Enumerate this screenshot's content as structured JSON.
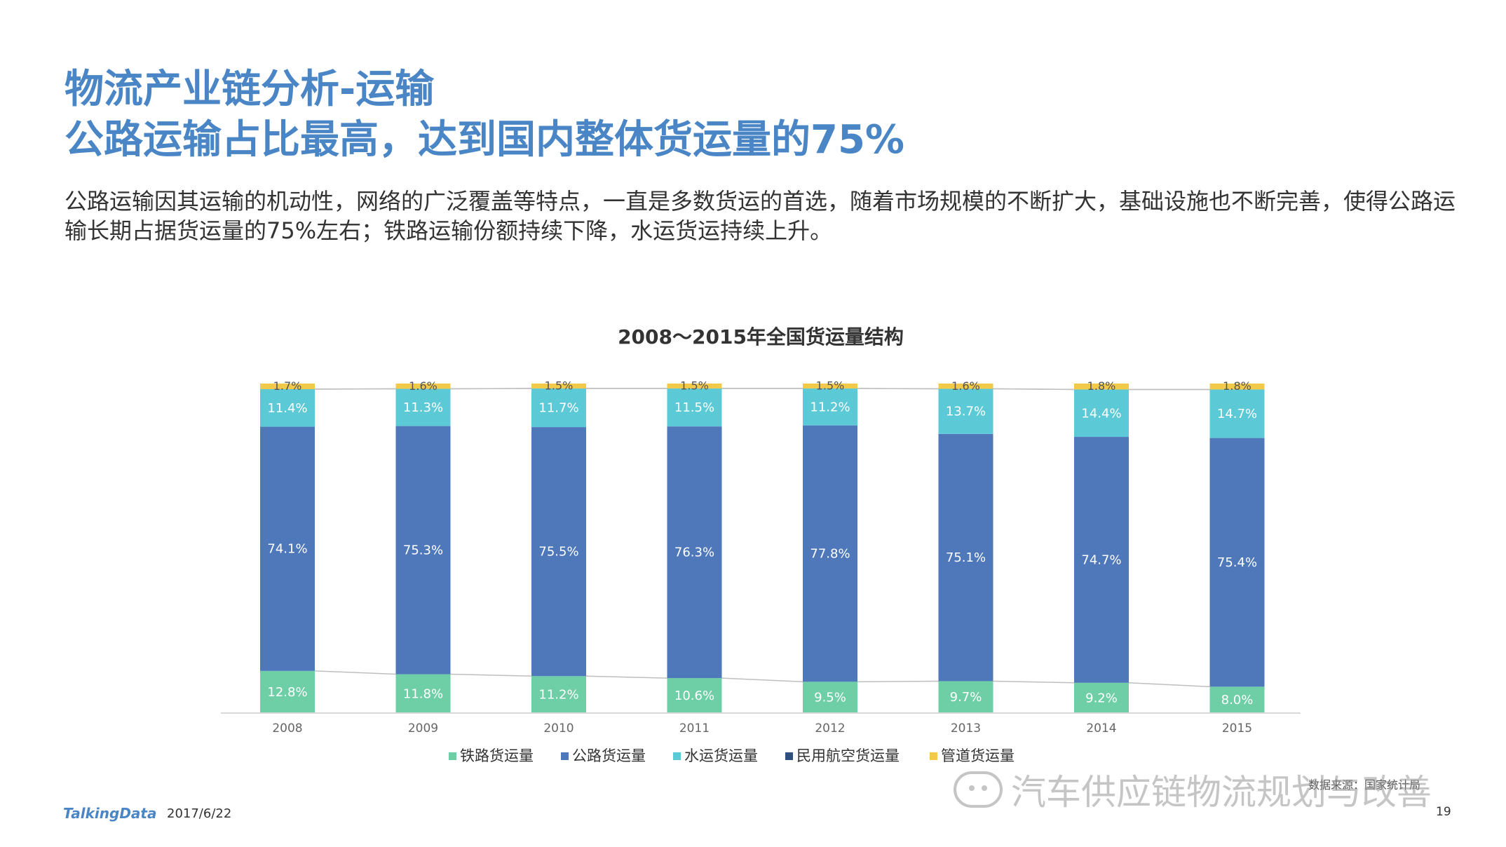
{
  "header": {
    "title_line1": "物流产业链分析-运输",
    "title_line2": "公路运输占比最高，达到国内整体货运量的75%",
    "description": "公路运输因其运输的机动性，网络的广泛覆盖等特点，一直是多数货运的首选，随着市场规模的不断扩大，基础设施也不断完善，使得公路运输长期占据货运量的75%左右；铁路运输份额持续下降，水运货运持续上升。"
  },
  "chart_data": {
    "type": "bar",
    "stacked": true,
    "normalized": true,
    "title": "2008～2015年全国货运量结构",
    "categories": [
      "2008",
      "2009",
      "2010",
      "2011",
      "2012",
      "2013",
      "2014",
      "2015"
    ],
    "series": [
      {
        "name": "铁路货运量",
        "color": "#6ecfa6",
        "values": [
          12.8,
          11.8,
          11.2,
          10.6,
          9.5,
          9.7,
          9.2,
          8.0
        ],
        "labels": [
          "12.8%",
          "11.8%",
          "11.2%",
          "10.6%",
          "9.5%",
          "9.7%",
          "9.2%",
          "8.0%"
        ]
      },
      {
        "name": "公路货运量",
        "color": "#4f78bb",
        "values": [
          74.1,
          75.3,
          75.5,
          76.3,
          77.8,
          75.1,
          74.7,
          75.4
        ],
        "labels": [
          "74.1%",
          "75.3%",
          "75.5%",
          "76.3%",
          "77.8%",
          "75.1%",
          "74.7%",
          "75.4%"
        ]
      },
      {
        "name": "水运货运量",
        "color": "#5ccad6",
        "values": [
          11.4,
          11.3,
          11.7,
          11.5,
          11.2,
          13.7,
          14.4,
          14.7
        ],
        "labels": [
          "11.4%",
          "11.3%",
          "11.7%",
          "11.5%",
          "11.2%",
          "13.7%",
          "14.4%",
          "14.7%"
        ]
      },
      {
        "name": "民用航空货运量",
        "color": "#2f4f7f",
        "values": [
          0.0,
          0.0,
          0.0,
          0.0,
          0.0,
          0.0,
          0.0,
          0.0
        ],
        "labels": []
      },
      {
        "name": "管道货运量",
        "color": "#f3c94a",
        "values": [
          1.7,
          1.6,
          1.5,
          1.5,
          1.5,
          1.6,
          1.8,
          1.8
        ],
        "labels": [
          "1.7%",
          "1.6%",
          "1.5%",
          "1.5%",
          "1.5%",
          "1.6%",
          "1.8%",
          "1.8%"
        ]
      }
    ],
    "legend": "bottom",
    "series_lines": true,
    "grid": false
  },
  "footer": {
    "brand": "TalkingData",
    "date": "2017/6/22",
    "page": "19",
    "source": "数据来源：国家统计局",
    "watermark": "汽车供应链物流规划与改善"
  }
}
